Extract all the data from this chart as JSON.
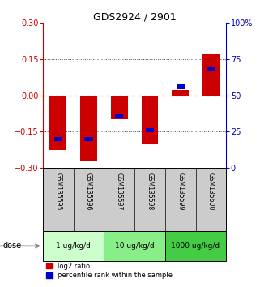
{
  "title": "GDS2924 / 2901",
  "samples": [
    "GSM135595",
    "GSM135596",
    "GSM135597",
    "GSM135598",
    "GSM135599",
    "GSM135600"
  ],
  "log2_ratio": [
    -0.225,
    -0.27,
    -0.1,
    -0.2,
    0.022,
    0.17
  ],
  "percentile_rank": [
    20,
    20,
    36,
    26,
    56,
    68
  ],
  "ylim_left": [
    -0.3,
    0.3
  ],
  "ylim_right": [
    0,
    100
  ],
  "yticks_left": [
    -0.3,
    -0.15,
    0,
    0.15,
    0.3
  ],
  "yticks_right": [
    0,
    25,
    50,
    75,
    100
  ],
  "ytick_labels_right": [
    "0",
    "25",
    "50",
    "75",
    "100%"
  ],
  "hlines_dotted": [
    -0.15,
    0.15
  ],
  "hline_zero": 0,
  "bar_color": "#cc0000",
  "square_color": "#0000cc",
  "zero_line_color": "#cc0000",
  "dotted_line_color": "#444444",
  "doses": [
    "1 ug/kg/d",
    "10 ug/kg/d",
    "1000 ug/kg/d"
  ],
  "dose_sample_counts": [
    2,
    2,
    2
  ],
  "dose_colors": [
    "#ccffcc",
    "#88ee88",
    "#44cc44"
  ],
  "sample_box_color": "#cccccc",
  "bar_width": 0.55,
  "legend_red_label": "log2 ratio",
  "legend_blue_label": "percentile rank within the sample",
  "left_axis_color": "#cc0000",
  "right_axis_color": "#0000bb"
}
